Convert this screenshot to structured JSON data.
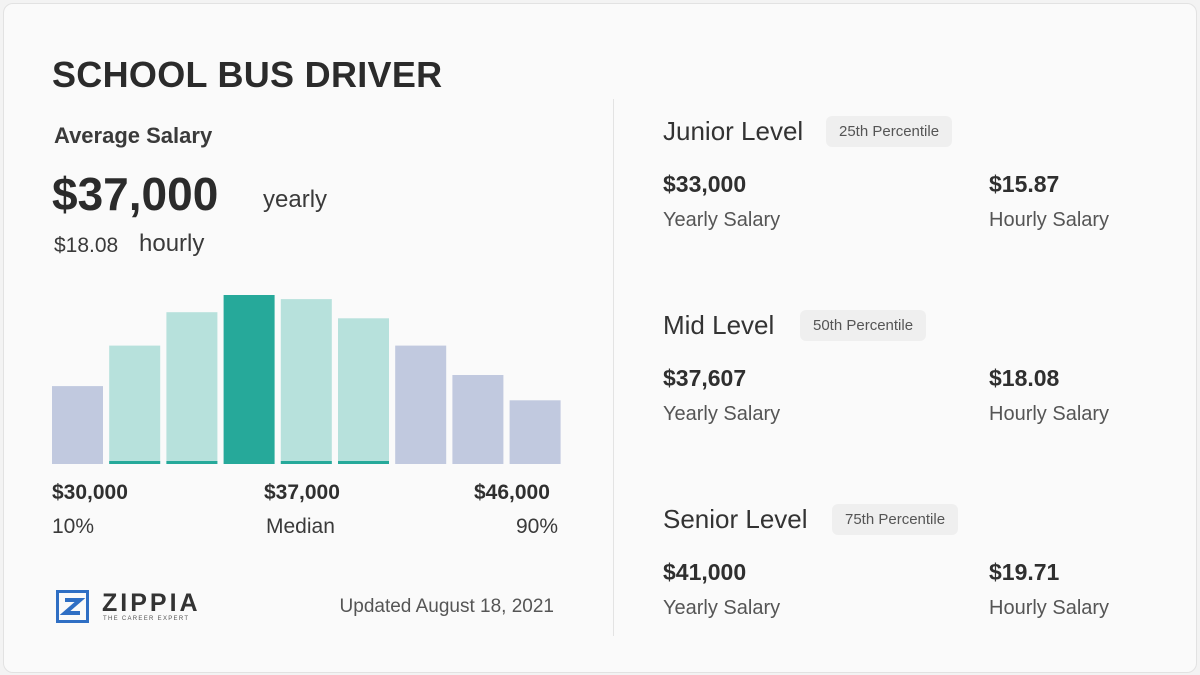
{
  "header": {
    "title": "SCHOOL BUS DRIVER"
  },
  "average": {
    "label": "Average Salary",
    "value": "$37,000",
    "yearly_unit": "yearly",
    "hourly_value": "$18.08",
    "hourly_unit": "hourly"
  },
  "chart_data": {
    "type": "bar",
    "values": [
      77,
      117,
      150,
      167,
      163,
      144,
      117,
      88,
      63
    ],
    "ylim": [
      0,
      170
    ],
    "colors": [
      "#c1c9df",
      "#b7e1dc",
      "#b7e1dc",
      "#26a99a",
      "#b7e1dc",
      "#b7e1dc",
      "#c1c9df",
      "#c1c9df",
      "#c1c9df"
    ],
    "accent": "#26a99a",
    "tick_labels": [
      {
        "value": "$30,000",
        "label": "10%"
      },
      {
        "value": "$37,000",
        "label": "Median"
      },
      {
        "value": "$46,000",
        "label": "90%"
      }
    ]
  },
  "footer": {
    "brand": "ZIPPIA",
    "tagline": "THE CAREER EXPERT",
    "updated": "Updated August 18, 2021",
    "brand_color": "#2f6fc4"
  },
  "levels": [
    {
      "name": "Junior Level",
      "percentile": "25th Percentile",
      "yearly": "$33,000",
      "yearly_label": "Yearly Salary",
      "hourly": "$15.87",
      "hourly_label": "Hourly Salary"
    },
    {
      "name": "Mid Level",
      "percentile": "50th Percentile",
      "yearly": "$37,607",
      "yearly_label": "Yearly Salary",
      "hourly": "$18.08",
      "hourly_label": "Hourly Salary"
    },
    {
      "name": "Senior Level",
      "percentile": "75th Percentile",
      "yearly": "$41,000",
      "yearly_label": "Yearly Salary",
      "hourly": "$19.71",
      "hourly_label": "Hourly Salary"
    }
  ]
}
